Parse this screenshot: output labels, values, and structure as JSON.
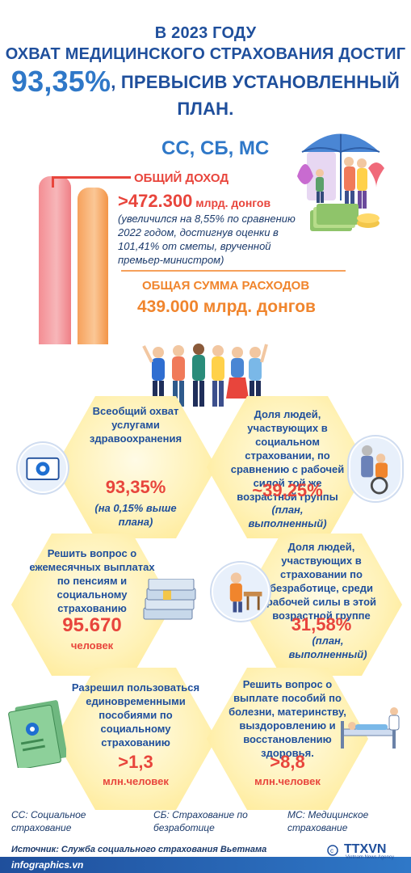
{
  "header": {
    "line1": "В 2023 ГОДУ",
    "line2": "ОХВАТ МЕДИЦИНСКОГО СТРАХОВАНИЯ ДОСТИГ",
    "line3_value": "93,35%",
    "line3_rest": ", ПРЕВЫСИВ УСТАНОВЛЕННЫЙ ПЛАН."
  },
  "finance": {
    "title": "СС, СБ, МС",
    "income_label": "ОБЩИЙ ДОХОД",
    "income_value": ">472.300",
    "income_unit": " млрд. донгов",
    "income_note": "(увеличился на 8,55% по сравнению 2022 годом, достигнув оценки в 101,41% от сметы, врученной премьер-министром)",
    "expense_label": "ОБЩАЯ СУММА РАСХОДОВ",
    "expense_value": "439.000 млрд. донгов"
  },
  "cards": [
    {
      "title": "Всеобщий охват услугами здравоохранения",
      "value": "93,35%",
      "sub": "(на 0,15% выше плана)"
    },
    {
      "title": "Доля людей, участвующих в социальном страховании, по сравнению с рабочей силой той же возрастной группы",
      "value": "~39,25%",
      "sub": "(план, выполненный)"
    },
    {
      "title": "Решить вопрос о ежемесячных выплатах по пенсиям и социальному страхованию",
      "value": "95.670",
      "sub": "человек"
    },
    {
      "title": "Доля людей, участвующих в страховании по безработице, среди рабочей силы в этой возрастной группе",
      "value": "31,58%",
      "sub": "(план, выполненный)"
    },
    {
      "title": "Разрешил пользоваться единовременными пособиями по социальному страхованию",
      "value": ">1,3",
      "sub": "млн.человек"
    },
    {
      "title": "Решить вопрос о выплате пособий по болезни, материнству, выздоровлению и восстановлению здоровья.",
      "value": ">8,8",
      "sub": "млн.человек"
    }
  ],
  "definitions": {
    "ss": "СС: Социальное страхование",
    "sb": "СБ: Страхование по безработице",
    "ms": "МС: Медицинское страхование"
  },
  "footer": {
    "source": "Источник: Служба социального страхования Вьетнама",
    "site": "infographics.vn",
    "agency": "TTXVN",
    "agency_sub": "Vietnam News Agency"
  },
  "colors": {
    "blue": "#1f4f9c",
    "light_blue": "#2f78c8",
    "red": "#e8453c",
    "orange": "#f0852d",
    "hex_yellow": "#fff2b8"
  }
}
